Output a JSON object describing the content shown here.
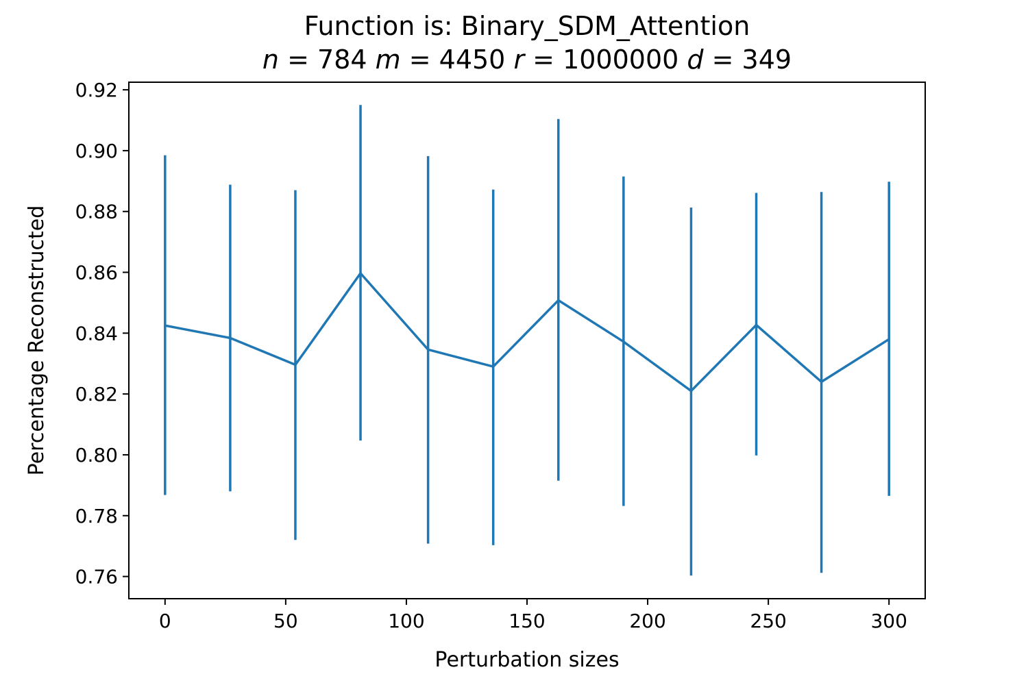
{
  "chart_data": {
    "type": "line",
    "title": "Function is: Binary_SDM_Attention",
    "subtitle": {
      "parts": [
        {
          "var": "n",
          "value": "784"
        },
        {
          "var": "m",
          "value": "4450"
        },
        {
          "var": "r",
          "value": "1000000"
        },
        {
          "var": "d",
          "value": "349"
        }
      ]
    },
    "xlabel": "Perturbation sizes",
    "ylabel": "Percentage Reconstructed",
    "xlim": [
      -15,
      315
    ],
    "ylim": [
      0.7527,
      0.9225
    ],
    "x_ticks": [
      "0",
      "50",
      "100",
      "150",
      "200",
      "250",
      "300"
    ],
    "y_ticks": [
      "0.76",
      "0.78",
      "0.80",
      "0.82",
      "0.84",
      "0.86",
      "0.88",
      "0.90",
      "0.92"
    ],
    "grid": false,
    "series": [
      {
        "color": "#1f77b4",
        "x": [
          0,
          27,
          54,
          81,
          109,
          136,
          163,
          190,
          218,
          245,
          272,
          300
        ],
        "y": [
          0.8425,
          0.8384,
          0.8296,
          0.8597,
          0.8346,
          0.829,
          0.8508,
          0.8372,
          0.821,
          0.8427,
          0.824,
          0.838
        ],
        "yerr_low": [
          0.7868,
          0.788,
          0.772,
          0.8047,
          0.7708,
          0.7703,
          0.7915,
          0.7832,
          0.7603,
          0.7998,
          0.7612,
          0.7865
        ],
        "yerr_high": [
          0.8985,
          0.8888,
          0.887,
          0.915,
          0.8982,
          0.8872,
          0.9104,
          0.8915,
          0.8813,
          0.8861,
          0.8864,
          0.8898
        ]
      }
    ]
  }
}
